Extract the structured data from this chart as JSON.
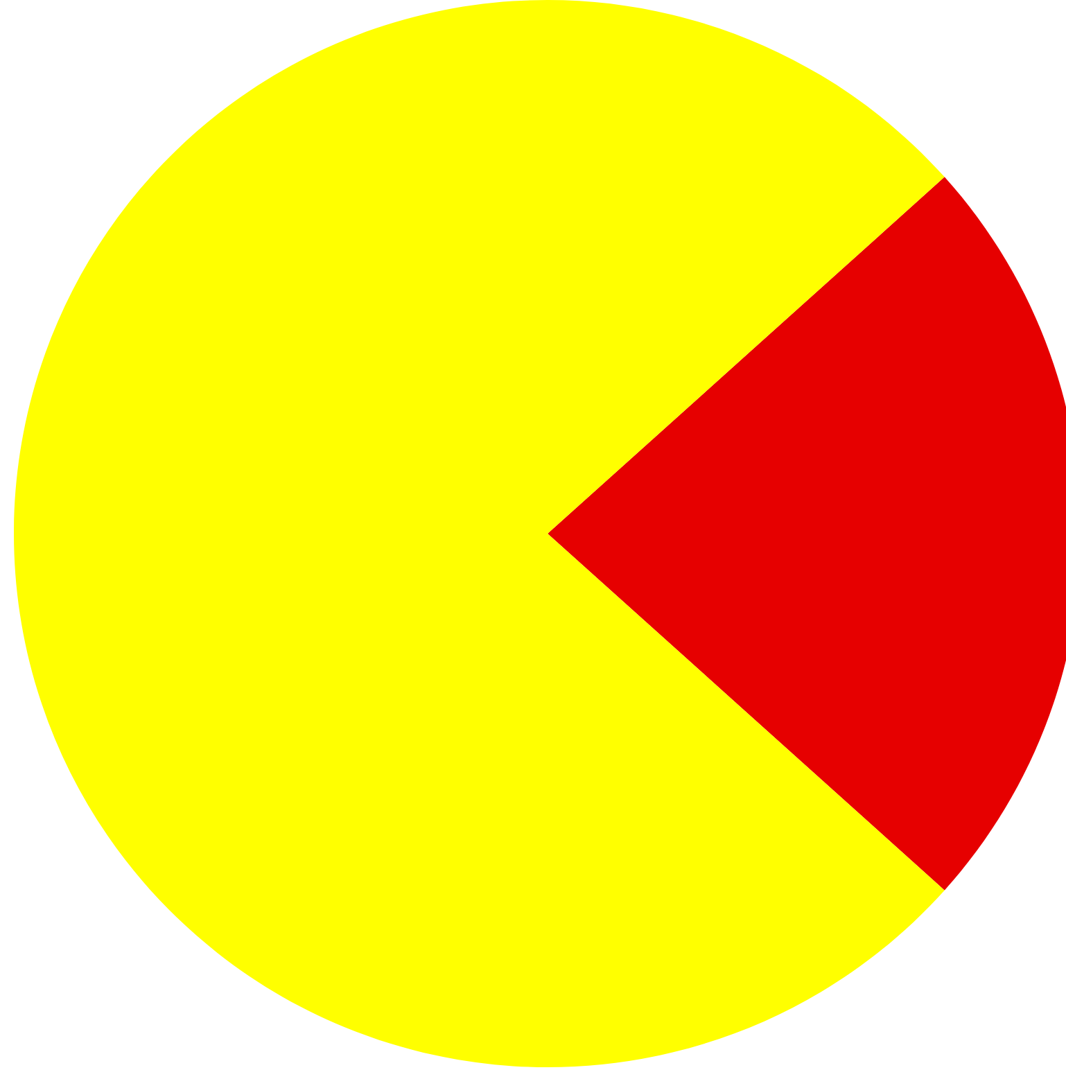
{
  "chart_data": {
    "type": "pie",
    "categories": [
      null,
      null
    ],
    "values": [
      23.3,
      76.7
    ],
    "colors": [
      "#e60000",
      "#ffff00"
    ]
  }
}
